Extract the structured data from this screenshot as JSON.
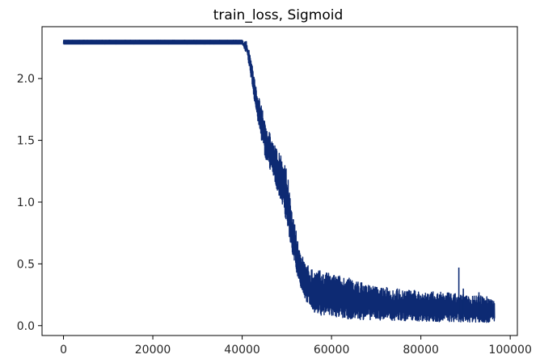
{
  "chart_data": {
    "type": "line",
    "title": "train_loss, Sigmoid",
    "xlabel": "",
    "ylabel": "",
    "xlim": [
      -4800,
      101600
    ],
    "ylim": [
      -0.08,
      2.42
    ],
    "x_ticks": [
      0,
      20000,
      40000,
      60000,
      80000,
      100000
    ],
    "x_tick_labels": [
      "0",
      "20000",
      "40000",
      "60000",
      "80000",
      "100000"
    ],
    "y_ticks": [
      0.0,
      0.5,
      1.0,
      1.5,
      2.0
    ],
    "y_tick_labels": [
      "0.0",
      "0.5",
      "1.0",
      "1.5",
      "2.0"
    ],
    "grid": false,
    "series": [
      {
        "color": "#0d2a73",
        "x": [
          0,
          10000,
          20000,
          30000,
          40000,
          41000,
          42000,
          43000,
          44000,
          45000,
          46000,
          47000,
          48000,
          49000,
          50000,
          51000,
          52000,
          53000,
          54000,
          55000,
          56000,
          58000,
          60000,
          63000,
          66000,
          70000,
          75000,
          80000,
          85000,
          90000,
          95000,
          96500
        ],
        "low": [
          2.28,
          2.28,
          2.28,
          2.28,
          2.28,
          2.2,
          2.0,
          1.75,
          1.55,
          1.38,
          1.28,
          1.18,
          1.08,
          0.98,
          0.82,
          0.62,
          0.45,
          0.32,
          0.22,
          0.15,
          0.11,
          0.08,
          0.065,
          0.055,
          0.05,
          0.045,
          0.04,
          0.035,
          0.03,
          0.03,
          0.025,
          0.025
        ],
        "high": [
          2.31,
          2.31,
          2.31,
          2.31,
          2.31,
          2.3,
          2.18,
          1.95,
          1.82,
          1.68,
          1.58,
          1.48,
          1.42,
          1.35,
          1.28,
          0.95,
          0.78,
          0.62,
          0.52,
          0.48,
          0.46,
          0.44,
          0.42,
          0.4,
          0.36,
          0.32,
          0.3,
          0.28,
          0.27,
          0.25,
          0.24,
          0.22
        ],
        "spikes": [
          {
            "x": 88500,
            "y": 0.47
          },
          {
            "x": 89500,
            "y": 0.3
          },
          {
            "x": 93000,
            "y": 0.27
          }
        ]
      }
    ]
  }
}
